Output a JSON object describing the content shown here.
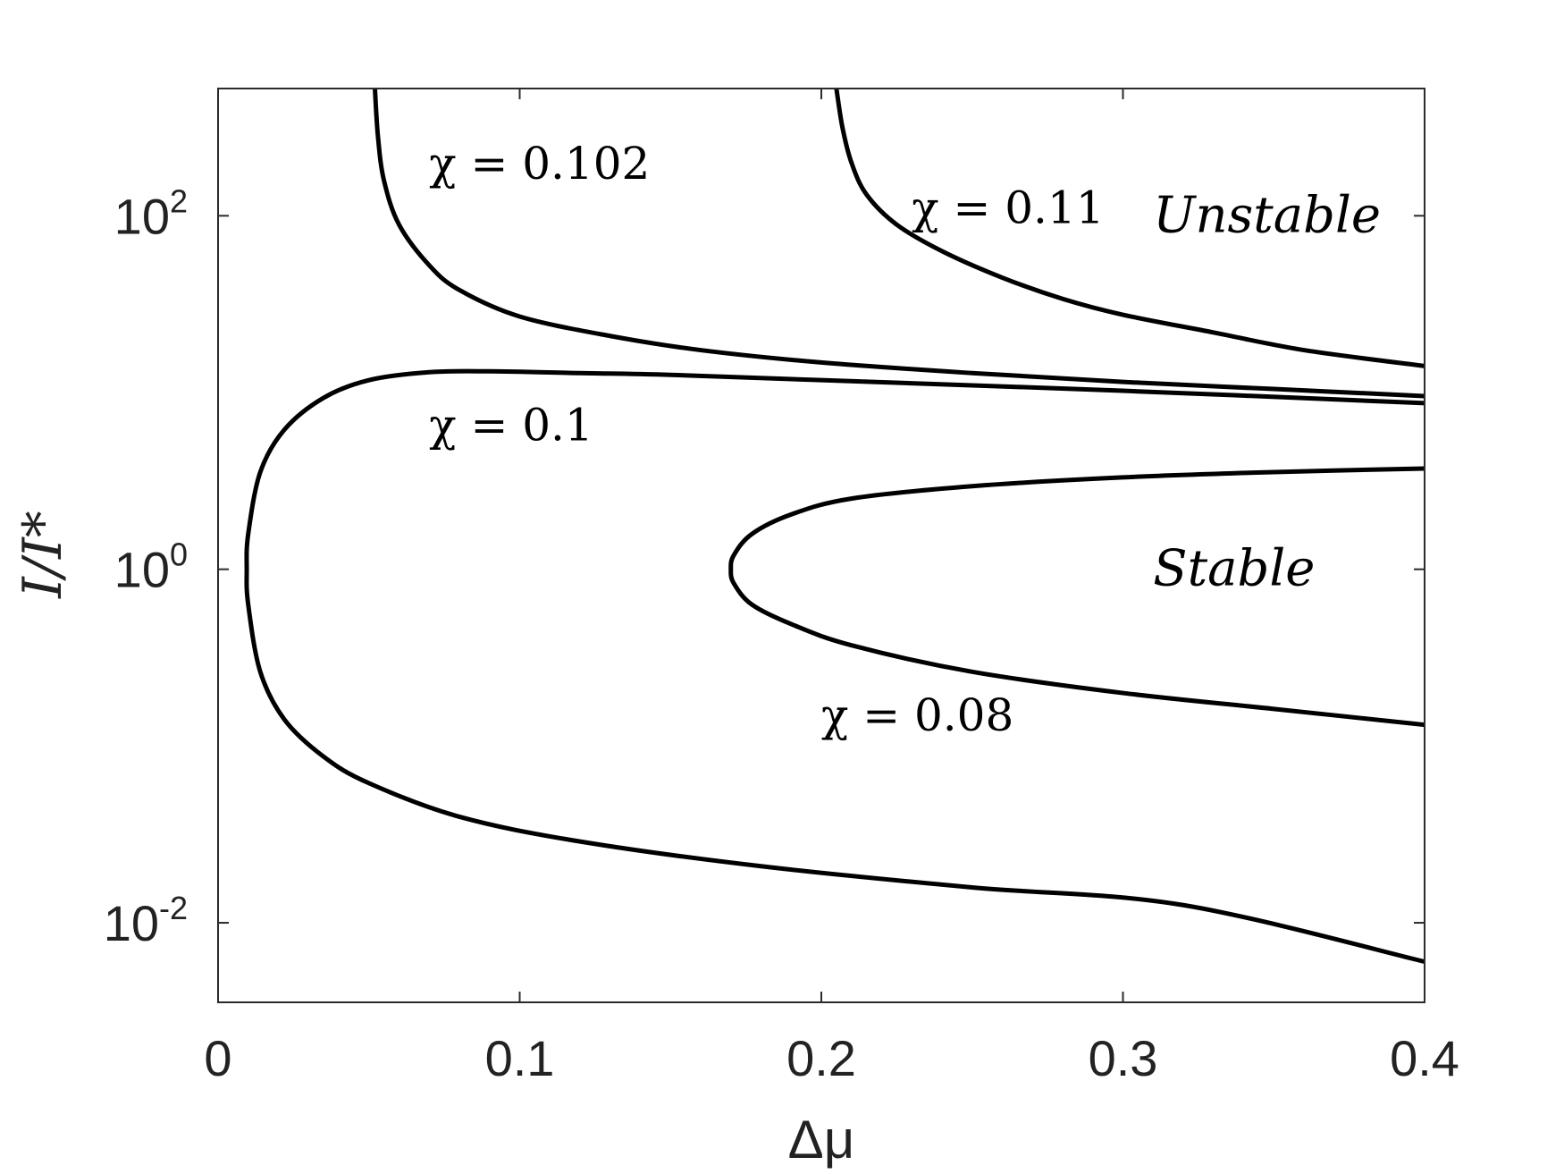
{
  "chart_data": {
    "type": "line",
    "xlabel": "Δμ",
    "ylabel": "I/I*",
    "xlim": [
      0,
      0.4
    ],
    "ylim_log10": [
      -2.45,
      2.72
    ],
    "yscale": "log",
    "grid": false,
    "x_ticks": [
      {
        "value": 0,
        "label": "0"
      },
      {
        "value": 0.1,
        "label": "0.1"
      },
      {
        "value": 0.2,
        "label": "0.2"
      },
      {
        "value": 0.3,
        "label": "0.3"
      },
      {
        "value": 0.4,
        "label": "0.4"
      }
    ],
    "y_ticks": [
      {
        "log10": 2,
        "base": "10",
        "exp": "2"
      },
      {
        "log10": 0,
        "base": "10",
        "exp": "0"
      },
      {
        "log10": -2,
        "base": "10",
        "exp": "-2"
      }
    ],
    "series": [
      {
        "name": "χ = 0.102",
        "points": [
          [
            0.052,
            2.72
          ],
          [
            0.053,
            2.45
          ],
          [
            0.055,
            2.2
          ],
          [
            0.06,
            1.95
          ],
          [
            0.07,
            1.72
          ],
          [
            0.08,
            1.58
          ],
          [
            0.1,
            1.43
          ],
          [
            0.13,
            1.32
          ],
          [
            0.16,
            1.24
          ],
          [
            0.2,
            1.17
          ],
          [
            0.25,
            1.11
          ],
          [
            0.3,
            1.06
          ],
          [
            0.35,
            1.02
          ],
          [
            0.4,
            0.98
          ]
        ]
      },
      {
        "name": "χ = 0.11",
        "points": [
          [
            0.205,
            2.72
          ],
          [
            0.207,
            2.5
          ],
          [
            0.21,
            2.3
          ],
          [
            0.215,
            2.12
          ],
          [
            0.225,
            1.95
          ],
          [
            0.24,
            1.8
          ],
          [
            0.26,
            1.65
          ],
          [
            0.28,
            1.53
          ],
          [
            0.3,
            1.44
          ],
          [
            0.33,
            1.34
          ],
          [
            0.36,
            1.24
          ],
          [
            0.4,
            1.15
          ]
        ]
      },
      {
        "name": "χ = 0.1",
        "points": [
          [
            0.4,
            0.94
          ],
          [
            0.3,
            1.01
          ],
          [
            0.2,
            1.07
          ],
          [
            0.15,
            1.1
          ],
          [
            0.12,
            1.11
          ],
          [
            0.09,
            1.12
          ],
          [
            0.07,
            1.115
          ],
          [
            0.05,
            1.07
          ],
          [
            0.035,
            0.97
          ],
          [
            0.022,
            0.79
          ],
          [
            0.014,
            0.55
          ],
          [
            0.01,
            0.2
          ],
          [
            0.0095,
            0.0
          ],
          [
            0.01,
            -0.2
          ],
          [
            0.014,
            -0.58
          ],
          [
            0.022,
            -0.85
          ],
          [
            0.035,
            -1.06
          ],
          [
            0.05,
            -1.21
          ],
          [
            0.08,
            -1.4
          ],
          [
            0.12,
            -1.54
          ],
          [
            0.18,
            -1.68
          ],
          [
            0.25,
            -1.8
          ],
          [
            0.32,
            -1.9
          ],
          [
            0.4,
            -2.22
          ]
        ]
      },
      {
        "name": "χ = 0.08",
        "points": [
          [
            0.4,
            0.57
          ],
          [
            0.35,
            0.55
          ],
          [
            0.3,
            0.52
          ],
          [
            0.25,
            0.47
          ],
          [
            0.21,
            0.4
          ],
          [
            0.19,
            0.31
          ],
          [
            0.177,
            0.2
          ],
          [
            0.171,
            0.08
          ],
          [
            0.17,
            0.0
          ],
          [
            0.171,
            -0.08
          ],
          [
            0.177,
            -0.2
          ],
          [
            0.19,
            -0.31
          ],
          [
            0.21,
            -0.43
          ],
          [
            0.25,
            -0.58
          ],
          [
            0.3,
            -0.7
          ],
          [
            0.35,
            -0.79
          ],
          [
            0.4,
            -0.88
          ]
        ]
      }
    ],
    "annotations": [
      {
        "text": "χ = 0.102",
        "x": 0.07,
        "y_log10": 2.3,
        "style": "math"
      },
      {
        "text": "χ = 0.11",
        "x": 0.23,
        "y_log10": 2.05,
        "style": "math"
      },
      {
        "text": "χ = 0.1",
        "x": 0.07,
        "y_log10": 0.82,
        "style": "math"
      },
      {
        "text": "χ = 0.08",
        "x": 0.2,
        "y_log10": -0.82,
        "style": "math"
      },
      {
        "text": "Unstable",
        "x": 0.31,
        "y_log10": 2.0,
        "style": "italic"
      },
      {
        "text": "Stable",
        "x": 0.31,
        "y_log10": 0.0,
        "style": "italic"
      }
    ]
  }
}
